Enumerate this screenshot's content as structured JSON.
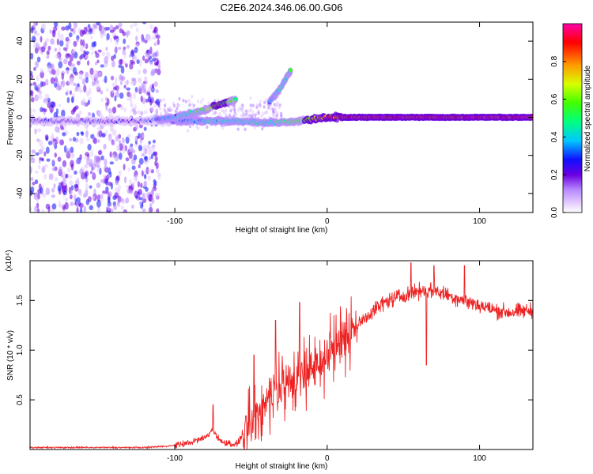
{
  "figure": {
    "title": "C2E6.2024.346.06.00.G06"
  },
  "colors": {
    "line": "#ee2222",
    "frame": "#000000",
    "colormap": [
      "#ffffff",
      "#e4ccff",
      "#b889ff",
      "#6a00e0",
      "#1010ff",
      "#00c8ff",
      "#00ff80",
      "#40ff00",
      "#d8ff00",
      "#ff9a00",
      "#ff0000",
      "#ff00aa"
    ]
  },
  "chart_data": [
    {
      "type": "heatmap",
      "name": "spectrogram",
      "xlabel": "Height of straight line (km)",
      "ylabel": "Frequency (Hz)",
      "xlim": [
        -195,
        135
      ],
      "ylim": [
        -50,
        50
      ],
      "xticks": [
        -100,
        0,
        100
      ],
      "xtick_labels": [
        "-100",
        "0",
        "100"
      ],
      "yticks": [
        -40,
        -20,
        0,
        20,
        40
      ],
      "ytick_labels": [
        "-40",
        "-20",
        "0",
        "20",
        "40"
      ],
      "colorbar": {
        "label": "Normalized spectral amplitude",
        "range": [
          0,
          1
        ],
        "ticks": [
          0.0,
          0.2,
          0.4,
          0.6,
          0.8
        ],
        "tick_labels": [
          "0.0",
          "0.2",
          "0.4",
          "0.6",
          "0.8"
        ]
      },
      "ridges": [
        {
          "feature": "main carrier",
          "x": [
            -195,
            -120,
            -100,
            -60,
            -40,
            -20,
            0,
            20,
            60,
            100,
            135
          ],
          "y": [
            -2,
            -2,
            -2,
            -2,
            -3,
            -2,
            0,
            0,
            0,
            0,
            0
          ],
          "amplitude": [
            0.3,
            0.3,
            0.4,
            0.5,
            0.5,
            0.6,
            0.8,
            0.9,
            0.9,
            0.9,
            0.9
          ]
        },
        {
          "feature": "rising branch",
          "x": [
            -120,
            -100,
            -80,
            -70,
            -60
          ],
          "y": [
            -2,
            0,
            4,
            7,
            9
          ],
          "amplitude": [
            0.35,
            0.45,
            0.6,
            0.7,
            0.6
          ]
        },
        {
          "feature": "high branch",
          "x": [
            -38,
            -30,
            -24
          ],
          "y": [
            8,
            16,
            25
          ],
          "amplitude": [
            0.4,
            0.5,
            0.55
          ]
        }
      ],
      "noise_region": {
        "x": [
          -195,
          -110
        ],
        "y": [
          -50,
          50
        ],
        "amplitude": 0.2
      }
    },
    {
      "type": "line",
      "name": "snr",
      "xlabel": "Height of straight line (km)",
      "ylabel": "SNR (10 * v/v)",
      "y_multiplier": "(x10⁴)",
      "xlim": [
        -195,
        135
      ],
      "ylim": [
        0,
        1.9
      ],
      "xticks": [
        -100,
        0,
        100
      ],
      "xtick_labels": [
        "-100",
        "0",
        "100"
      ],
      "yticks": [
        0.5,
        1.0,
        1.5
      ],
      "ytick_labels": [
        "0.5",
        "1.0",
        "1.5"
      ],
      "series": [
        {
          "x": [
            -195,
            -150,
            -120,
            -100,
            -90,
            -80,
            -75,
            -70,
            -60,
            -50,
            -45,
            -40,
            -35,
            -30,
            -25,
            -20,
            -15,
            -10,
            -5,
            0,
            10,
            20,
            30,
            40,
            50,
            60,
            70,
            80,
            90,
            100,
            110,
            120,
            135
          ],
          "values": [
            0.02,
            0.02,
            0.02,
            0.04,
            0.07,
            0.12,
            0.2,
            0.08,
            0.05,
            0.25,
            0.4,
            0.5,
            0.6,
            0.6,
            0.7,
            0.7,
            0.75,
            0.8,
            0.85,
            0.95,
            1.1,
            1.25,
            1.4,
            1.5,
            1.55,
            1.6,
            1.6,
            1.55,
            1.5,
            1.45,
            1.4,
            1.38,
            1.4
          ],
          "spikes": [
            {
              "x": -75,
              "y": 0.45
            },
            {
              "x": -34,
              "y": 1.3
            },
            {
              "x": -18,
              "y": 1.48
            },
            {
              "x": -48,
              "y": 0.95
            },
            {
              "x": 55,
              "y": 1.88
            },
            {
              "x": 70,
              "y": 1.85
            },
            {
              "x": 90,
              "y": 1.85
            },
            {
              "x": 65,
              "y": 0.85
            }
          ]
        }
      ]
    }
  ]
}
